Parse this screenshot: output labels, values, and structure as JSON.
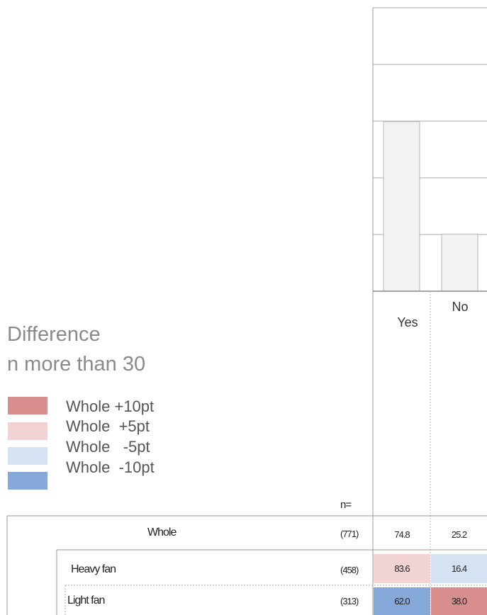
{
  "legend": {
    "title_line1": "Difference",
    "title_line2": "n more than 30",
    "items": [
      {
        "label": "Whole +10pt",
        "color": "#d98e8e"
      },
      {
        "label": "Whole  +5pt",
        "color": "#f2d3d3"
      },
      {
        "label": "Whole   -5pt",
        "color": "#d5e2f1"
      },
      {
        "label": "Whole  -10pt",
        "color": "#86a8d9"
      }
    ]
  },
  "n_header": "n=",
  "chart_data": {
    "type": "bar",
    "categories": [
      "Yes",
      "No"
    ],
    "values": [
      74.8,
      25.2
    ],
    "ylim": [
      0,
      100
    ],
    "grid": true,
    "table": {
      "rows": [
        {
          "label": "Whole",
          "n": "(771)",
          "values": [
            "74.8",
            "25.2"
          ],
          "shading": [
            "none",
            "none"
          ]
        },
        {
          "label": "Heavy fan",
          "n": "(458)",
          "values": [
            "83.6",
            "16.4"
          ],
          "shading": [
            "plus5",
            "minus5"
          ]
        },
        {
          "label": "Light fan",
          "n": "(313)",
          "values": [
            "62.0",
            "38.0"
          ],
          "shading": [
            "minus10",
            "plus10"
          ]
        }
      ]
    }
  }
}
